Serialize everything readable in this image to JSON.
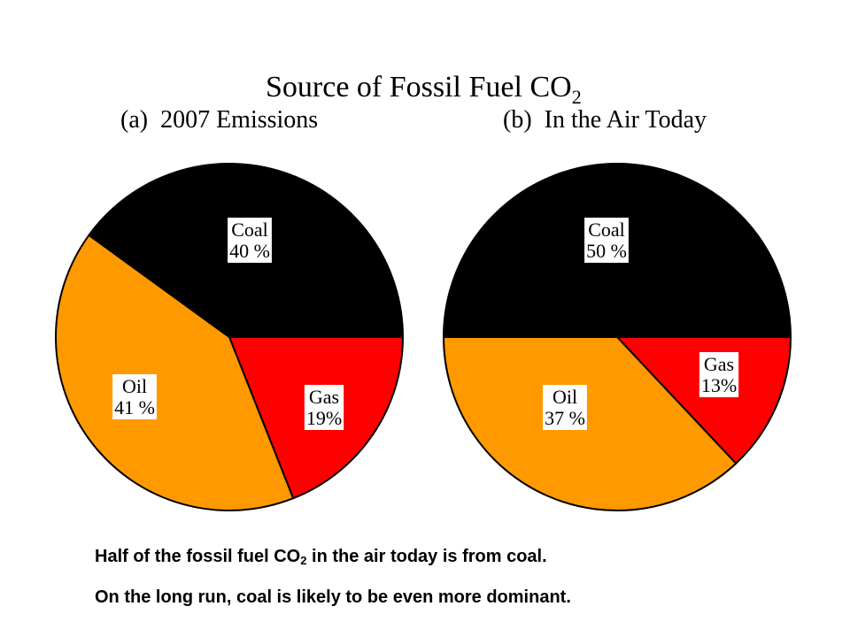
{
  "title": {
    "text": "Source of Fossil Fuel CO",
    "subscript": "2"
  },
  "captions": {
    "line1_before": "Half of the fossil fuel CO",
    "line1_sub": "2",
    "line1_after": " in the air today is from coal.",
    "line2": "On the long run, coal is likely to be even more dominant."
  },
  "chart_data": [
    {
      "type": "pie",
      "title": "(a)  2007 Emissions",
      "slices": [
        {
          "name": "Coal",
          "value": 40,
          "label": "40 %",
          "color": "#000000"
        },
        {
          "name": "Gas",
          "value": 19,
          "label": "19%",
          "color": "#ff0000"
        },
        {
          "name": "Oil",
          "value": 41,
          "label": "41 %",
          "color": "#ff9900"
        }
      ]
    },
    {
      "type": "pie",
      "title": "(b)  In the Air Today",
      "slices": [
        {
          "name": "Coal",
          "value": 50,
          "label": "50 %",
          "color": "#000000"
        },
        {
          "name": "Gas",
          "value": 13,
          "label": "13%",
          "color": "#ff0000"
        },
        {
          "name": "Oil",
          "value": 37,
          "label": "37 %",
          "color": "#ff9900"
        }
      ]
    }
  ]
}
